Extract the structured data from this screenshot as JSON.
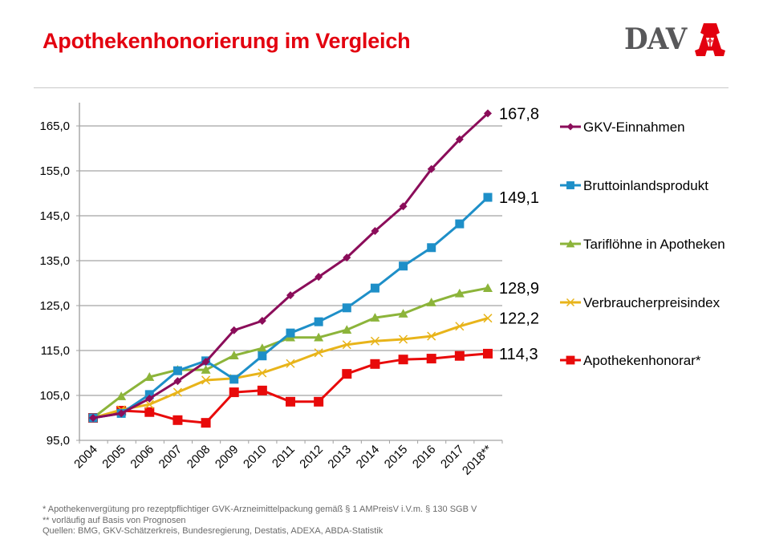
{
  "header": {
    "title": "Apothekenhonorierung im Vergleich",
    "logo_text": "DAV",
    "logo_icon": "apotheken-a-icon"
  },
  "colors": {
    "title": "#e3000f",
    "gkv": "#8b0d5a",
    "bip": "#1e8fc8",
    "tarif": "#8cb43a",
    "vpi": "#e8b41a",
    "apo": "#e80a0a",
    "grid": "#8c8c8c"
  },
  "chart_data": {
    "type": "line",
    "title": "",
    "xlabel": "",
    "ylabel": "",
    "ylim": [
      95,
      170
    ],
    "yticks": [
      95,
      105,
      115,
      125,
      135,
      145,
      155,
      165
    ],
    "ytick_labels": [
      "95,0",
      "105,0",
      "115,0",
      "125,0",
      "135,0",
      "145,0",
      "155,0",
      "165,0"
    ],
    "grid": true,
    "legend_position": "right",
    "categories": [
      "2004",
      "2005",
      "2006",
      "2007",
      "2008",
      "2009",
      "2010",
      "2011",
      "2012",
      "2013",
      "2014",
      "2015",
      "2016",
      "2017",
      "2018**"
    ],
    "series": [
      {
        "name": "GKV-Einnahmen",
        "key": "gkv",
        "marker": "diamond",
        "end_label": "167,8",
        "values": [
          100,
          101.0,
          104.3,
          108.2,
          112.5,
          119.5,
          121.6,
          127.3,
          131.4,
          135.7,
          141.6,
          147.1,
          155.4,
          162.0,
          167.8
        ]
      },
      {
        "name": "Bruttoinlandsprodukt",
        "key": "bip",
        "marker": "square",
        "end_label": "149,1",
        "values": [
          100,
          101.0,
          105.2,
          110.5,
          112.7,
          108.6,
          113.8,
          118.9,
          121.4,
          124.5,
          128.9,
          133.8,
          137.9,
          143.2,
          149.1
        ]
      },
      {
        "name": "Tariflöhne in Apotheken",
        "key": "tarif",
        "marker": "triangle",
        "end_label": "128,9",
        "values": [
          100,
          104.8,
          109.1,
          110.7,
          110.7,
          113.9,
          115.5,
          117.9,
          117.9,
          119.6,
          122.3,
          123.2,
          125.7,
          127.7,
          128.9
        ]
      },
      {
        "name": "Verbraucherpreisindex",
        "key": "vpi",
        "marker": "x",
        "end_label": "122,2",
        "values": [
          100,
          101.8,
          103.0,
          105.7,
          108.4,
          108.8,
          110.0,
          112.1,
          114.5,
          116.3,
          117.1,
          117.5,
          118.2,
          120.4,
          122.2
        ]
      },
      {
        "name": "Apothekenhonorar*",
        "key": "apo",
        "marker": "square-large",
        "end_label": "114,3",
        "values": [
          100,
          101.6,
          101.3,
          99.5,
          98.9,
          105.7,
          106.1,
          103.6,
          103.6,
          109.8,
          112.0,
          113.0,
          113.2,
          113.8,
          114.3
        ]
      }
    ]
  },
  "footnotes": [
    "* Apothekenvergütung  pro rezeptpflichtiger GVK-Arzneimittelpackung gemäß § 1 AMPreisV i.V.m. § 130 SGB V",
    "** vorläufig auf Basis von Prognosen",
    "Quellen: BMG, GKV-Schätzerkreis, Bundesregierung, Destatis, ADEXA, ABDA-Statistik"
  ]
}
